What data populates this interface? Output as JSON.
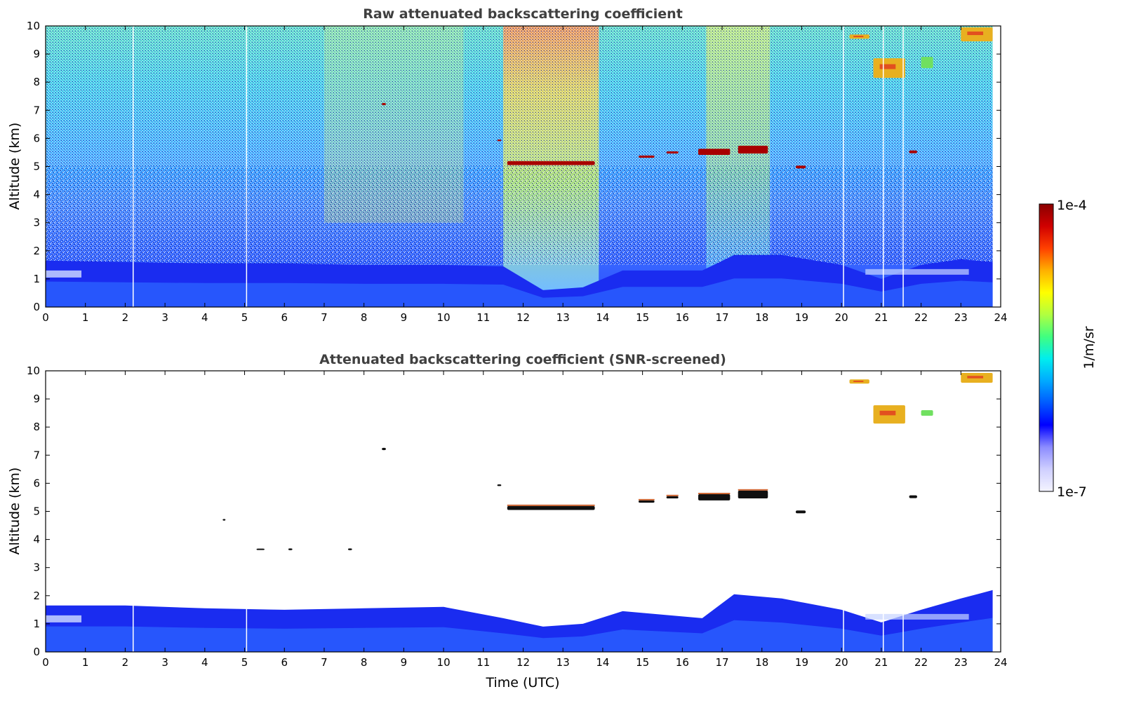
{
  "figure": {
    "colorbar": {
      "label": "1/m/sr",
      "max_label": "1e-4",
      "min_label": "1e-7",
      "colormap": [
        "#f4f4ff",
        "#cfcfff",
        "#8c8cff",
        "#0000ff",
        "#005aff",
        "#00aaff",
        "#00eeee",
        "#40ff80",
        "#b0ff40",
        "#ffff00",
        "#ffb000",
        "#ff4000",
        "#d00000",
        "#8a0000"
      ]
    }
  },
  "chart_data": [
    {
      "type": "heatmap",
      "title": "Raw attenuated backscattering coefficient",
      "xlabel": "",
      "ylabel": "Altitude (km)",
      "xlim": [
        0,
        24
      ],
      "ylim": [
        0,
        10
      ],
      "xticks": [
        "0",
        "1",
        "2",
        "3",
        "4",
        "5",
        "6",
        "7",
        "8",
        "9",
        "10",
        "11",
        "12",
        "13",
        "14",
        "15",
        "16",
        "17",
        "18",
        "19",
        "20",
        "21",
        "22",
        "23",
        "24"
      ],
      "yticks": [
        "0",
        "1",
        "2",
        "3",
        "4",
        "5",
        "6",
        "7",
        "8",
        "9",
        "10"
      ],
      "data_end_time": 23.8,
      "boundary_layer_top_km": [
        [
          0,
          1.65
        ],
        [
          2,
          1.6
        ],
        [
          4,
          1.55
        ],
        [
          6,
          1.55
        ],
        [
          8,
          1.5
        ],
        [
          10,
          1.5
        ],
        [
          11.5,
          1.45
        ],
        [
          12.5,
          0.6
        ],
        [
          13.5,
          0.7
        ],
        [
          14.5,
          1.3
        ],
        [
          16.5,
          1.3
        ],
        [
          17.3,
          1.85
        ],
        [
          18.5,
          1.85
        ],
        [
          20,
          1.5
        ],
        [
          21,
          1.0
        ],
        [
          22,
          1.5
        ],
        [
          23,
          1.7
        ],
        [
          23.8,
          1.6
        ]
      ],
      "clouds": [
        {
          "t0": 11.6,
          "t1": 13.8,
          "alt": 5.12,
          "thick": 0.14,
          "level": "high"
        },
        {
          "t0": 11.35,
          "t1": 11.45,
          "alt": 5.93,
          "thick": 0.06,
          "level": "high"
        },
        {
          "t0": 8.45,
          "t1": 8.55,
          "alt": 7.22,
          "thick": 0.08,
          "level": "high"
        },
        {
          "t0": 14.9,
          "t1": 15.3,
          "alt": 5.35,
          "thick": 0.08,
          "level": "high"
        },
        {
          "t0": 15.6,
          "t1": 15.9,
          "alt": 5.5,
          "thick": 0.08,
          "level": "high"
        },
        {
          "t0": 16.4,
          "t1": 17.2,
          "alt": 5.52,
          "thick": 0.22,
          "level": "high"
        },
        {
          "t0": 17.4,
          "t1": 18.15,
          "alt": 5.6,
          "thick": 0.28,
          "level": "high"
        },
        {
          "t0": 18.85,
          "t1": 19.1,
          "alt": 4.98,
          "thick": 0.1,
          "level": "high"
        },
        {
          "t0": 21.7,
          "t1": 21.9,
          "alt": 5.52,
          "thick": 0.1,
          "level": "high"
        },
        {
          "t0": 20.2,
          "t1": 20.7,
          "alt": 9.62,
          "thick": 0.15,
          "level": "mid"
        },
        {
          "t0": 20.8,
          "t1": 21.6,
          "alt": 8.5,
          "thick": 0.7,
          "level": "mid"
        },
        {
          "t0": 22.0,
          "t1": 22.3,
          "alt": 8.7,
          "thick": 0.4,
          "level": "low"
        },
        {
          "t0": 23.0,
          "t1": 23.8,
          "alt": 9.7,
          "thick": 0.5,
          "level": "mid"
        }
      ],
      "data_gaps_utc": [
        2.2,
        5.05,
        20.05,
        21.05,
        21.55
      ]
    },
    {
      "type": "heatmap",
      "title": "Attenuated backscattering coefficient (SNR-screened)",
      "xlabel": "Time (UTC)",
      "ylabel": "Altitude (km)",
      "xlim": [
        0,
        24
      ],
      "ylim": [
        0,
        10
      ],
      "xticks": [
        "0",
        "1",
        "2",
        "3",
        "4",
        "5",
        "6",
        "7",
        "8",
        "9",
        "10",
        "11",
        "12",
        "13",
        "14",
        "15",
        "16",
        "17",
        "18",
        "19",
        "20",
        "21",
        "22",
        "23",
        "24"
      ],
      "yticks": [
        "0",
        "1",
        "2",
        "3",
        "4",
        "5",
        "6",
        "7",
        "8",
        "9",
        "10"
      ],
      "data_end_time": 23.8,
      "boundary_layer_top_km": [
        [
          0,
          1.65
        ],
        [
          2,
          1.65
        ],
        [
          4,
          1.55
        ],
        [
          6,
          1.5
        ],
        [
          8,
          1.55
        ],
        [
          10,
          1.6
        ],
        [
          11.5,
          1.2
        ],
        [
          12.5,
          0.9
        ],
        [
          13.5,
          1.0
        ],
        [
          14.5,
          1.45
        ],
        [
          16.5,
          1.2
        ],
        [
          17.3,
          2.05
        ],
        [
          18.5,
          1.9
        ],
        [
          20,
          1.5
        ],
        [
          21,
          1.05
        ],
        [
          22,
          1.5
        ],
        [
          23,
          1.9
        ],
        [
          23.8,
          2.2
        ]
      ],
      "clouds": [
        {
          "t0": 11.6,
          "t1": 13.8,
          "alt": 5.12,
          "thick": 0.14,
          "level": "black"
        },
        {
          "t0": 11.35,
          "t1": 11.45,
          "alt": 5.93,
          "thick": 0.06,
          "level": "black"
        },
        {
          "t0": 8.45,
          "t1": 8.55,
          "alt": 7.22,
          "thick": 0.08,
          "level": "black"
        },
        {
          "t0": 4.45,
          "t1": 4.52,
          "alt": 4.7,
          "thick": 0.06,
          "level": "black"
        },
        {
          "t0": 5.3,
          "t1": 5.5,
          "alt": 3.65,
          "thick": 0.05,
          "level": "black"
        },
        {
          "t0": 6.1,
          "t1": 6.2,
          "alt": 3.65,
          "thick": 0.06,
          "level": "black"
        },
        {
          "t0": 7.6,
          "t1": 7.7,
          "alt": 3.65,
          "thick": 0.06,
          "level": "black"
        },
        {
          "t0": 14.9,
          "t1": 15.3,
          "alt": 5.35,
          "thick": 0.08,
          "level": "black"
        },
        {
          "t0": 15.6,
          "t1": 15.9,
          "alt": 5.5,
          "thick": 0.08,
          "level": "black"
        },
        {
          "t0": 16.4,
          "t1": 17.2,
          "alt": 5.5,
          "thick": 0.22,
          "level": "black"
        },
        {
          "t0": 17.4,
          "t1": 18.15,
          "alt": 5.6,
          "thick": 0.28,
          "level": "black"
        },
        {
          "t0": 18.85,
          "t1": 19.1,
          "alt": 4.98,
          "thick": 0.1,
          "level": "black"
        },
        {
          "t0": 21.7,
          "t1": 21.9,
          "alt": 5.52,
          "thick": 0.1,
          "level": "black"
        },
        {
          "t0": 20.2,
          "t1": 20.7,
          "alt": 9.62,
          "thick": 0.15,
          "level": "mid"
        },
        {
          "t0": 20.8,
          "t1": 21.6,
          "alt": 8.45,
          "thick": 0.65,
          "level": "mid"
        },
        {
          "t0": 22.0,
          "t1": 22.3,
          "alt": 8.5,
          "thick": 0.2,
          "level": "low"
        },
        {
          "t0": 23.0,
          "t1": 23.8,
          "alt": 9.75,
          "thick": 0.35,
          "level": "mid"
        }
      ],
      "data_gaps_utc": [
        2.2,
        5.05,
        20.05,
        21.05,
        21.55
      ]
    }
  ]
}
